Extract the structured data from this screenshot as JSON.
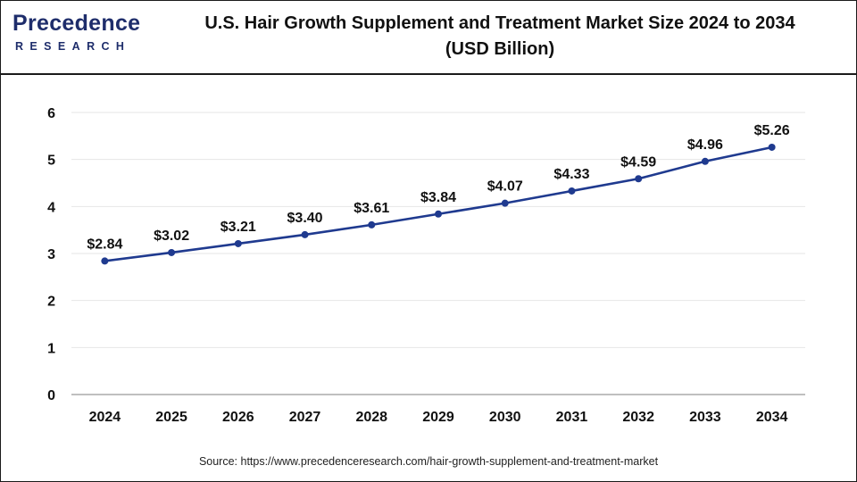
{
  "brand": {
    "name": "Precedence",
    "sub": "RESEARCH"
  },
  "title": "U.S. Hair Growth Supplement and Treatment Market Size 2024 to 2034",
  "subtitle": "(USD Billion)",
  "source": "Source: https://www.precedenceresearch.com/hair-growth-supplement-and-treatment-market",
  "colors": {
    "line": "#1f3a8f",
    "marker": "#1f3a8f",
    "grid": "#e6e6e6",
    "axis": "#999999",
    "brand": "#1e2d6b",
    "logo_accent": "#2f87d9"
  },
  "chart_data": {
    "type": "line",
    "categories": [
      "2024",
      "2025",
      "2026",
      "2027",
      "2028",
      "2029",
      "2030",
      "2031",
      "2032",
      "2033",
      "2034"
    ],
    "values": [
      2.84,
      3.02,
      3.21,
      3.4,
      3.61,
      3.84,
      4.07,
      4.33,
      4.59,
      4.96,
      5.26
    ],
    "data_labels": [
      "$2.84",
      "$3.02",
      "$3.21",
      "$3.40",
      "$3.61",
      "$3.84",
      "$4.07",
      "$4.33",
      "$4.59",
      "$4.96",
      "$5.26"
    ],
    "ylim": [
      0,
      6
    ],
    "yticks": [
      0,
      1,
      2,
      3,
      4,
      5,
      6
    ],
    "grid": true,
    "xlabel": "",
    "ylabel": ""
  }
}
